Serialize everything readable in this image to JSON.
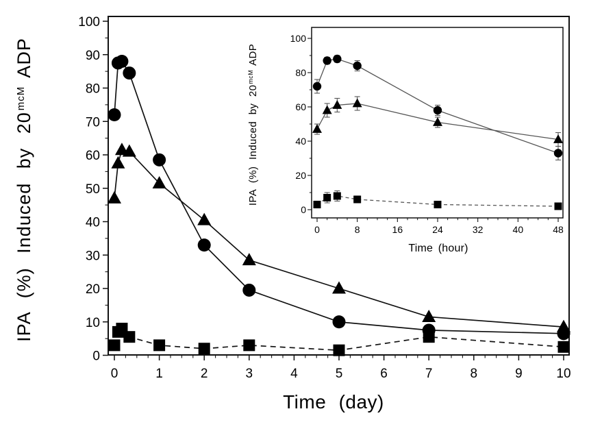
{
  "figure": {
    "background_color": "#ffffff",
    "text_color": "#000000",
    "main_xlabel": "Time (day)",
    "main_ylabel_prefix": "IPA (%) Induced by 20",
    "main_ylabel_sup": "mcM",
    "main_ylabel_suffix": "ADP",
    "inset_xlabel": "Time (hour)",
    "inset_ylabel_prefix": "IPA (%) Induced by 20",
    "inset_ylabel_sup": "mcM",
    "inset_ylabel_suffix": "ADP"
  },
  "chart_data": [
    {
      "id": "main",
      "type": "line",
      "title": "",
      "xlabel": "Time (day)",
      "ylabel": "IPA (%) Induced by 20 mcM ADP",
      "xlim": [
        0,
        10
      ],
      "ylim": [
        0,
        100
      ],
      "x_major_ticks": [
        0,
        1,
        2,
        3,
        4,
        5,
        6,
        7,
        8,
        9,
        10
      ],
      "x_minor_step": 0.25,
      "y_major_ticks": [
        0,
        10,
        20,
        30,
        40,
        50,
        60,
        70,
        80,
        90,
        100
      ],
      "y_minor_step": 5,
      "grid": false,
      "legend": null,
      "x": [
        0,
        0.083,
        0.167,
        0.333,
        1,
        2,
        3,
        5,
        7,
        10
      ],
      "series": [
        {
          "name": "filled-circle",
          "marker": "circle",
          "line": "solid",
          "values": [
            72,
            87.5,
            88,
            84.5,
            58.5,
            33,
            19.5,
            10,
            7.5,
            6.5
          ]
        },
        {
          "name": "filled-triangle",
          "marker": "triangle",
          "line": "solid",
          "values": [
            47,
            57.5,
            61.5,
            61,
            51.5,
            40.5,
            28.5,
            20,
            11.5,
            8.5
          ]
        },
        {
          "name": "filled-square",
          "marker": "square",
          "line": "dashed",
          "values": [
            3,
            7,
            8,
            5.5,
            3,
            2,
            3,
            1.5,
            5.5,
            2.5
          ]
        }
      ]
    },
    {
      "id": "inset",
      "type": "line",
      "title": "",
      "xlabel": "Time (hour)",
      "ylabel": "IPA (%) Induced by 20 mcM ADP",
      "xlim": [
        0,
        48
      ],
      "ylim": [
        0,
        100
      ],
      "x_major_ticks": [
        0,
        8,
        16,
        24,
        32,
        40,
        48
      ],
      "x_minor_step": 2,
      "y_major_ticks": [
        0,
        20,
        40,
        60,
        80,
        100
      ],
      "y_minor_step": 10,
      "grid": false,
      "legend": null,
      "x": [
        0,
        2,
        4,
        8,
        24,
        48
      ],
      "series": [
        {
          "name": "filled-circle",
          "marker": "circle",
          "line": "solid",
          "values": [
            72,
            87,
            88,
            84,
            58,
            33
          ],
          "errors": [
            4,
            2,
            2,
            3,
            3,
            4
          ]
        },
        {
          "name": "filled-triangle",
          "marker": "triangle",
          "line": "solid",
          "values": [
            47,
            58,
            61,
            62,
            51,
            41
          ],
          "errors": [
            3,
            4,
            4,
            4,
            3,
            4
          ]
        },
        {
          "name": "filled-square",
          "marker": "square",
          "line": "dashed",
          "values": [
            3,
            7,
            8,
            6,
            3,
            2
          ],
          "errors": [
            2,
            3,
            3,
            2,
            1,
            1
          ]
        }
      ]
    }
  ]
}
